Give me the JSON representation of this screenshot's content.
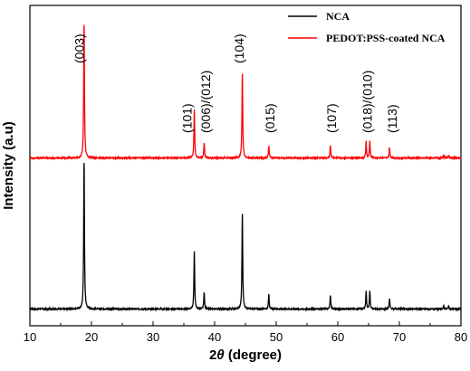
{
  "chart_data": {
    "type": "line",
    "xlabel_prefix": "2",
    "xlabel_symbol": "θ",
    "xlabel_suffix": " (degree)",
    "ylabel": "Intensity (a.u)",
    "xlim": [
      10,
      80
    ],
    "x_ticks": [
      10,
      20,
      30,
      40,
      50,
      60,
      70,
      80
    ],
    "y_ticks_shown": false,
    "grid": false,
    "legend_placement": "top-right",
    "series": [
      {
        "name": "NCA",
        "color": "#000000",
        "baseline": 0.03,
        "noise": 0.004,
        "peaks": [
          {
            "x": 18.8,
            "height": 1.0
          },
          {
            "x": 36.7,
            "height": 0.38
          },
          {
            "x": 38.3,
            "height": 0.11
          },
          {
            "x": 44.5,
            "height": 0.64
          },
          {
            "x": 48.8,
            "height": 0.1
          },
          {
            "x": 58.8,
            "height": 0.09
          },
          {
            "x": 64.6,
            "height": 0.12
          },
          {
            "x": 65.2,
            "height": 0.12
          },
          {
            "x": 68.4,
            "height": 0.07
          },
          {
            "x": 77.2,
            "height": 0.02
          },
          {
            "x": 78.0,
            "height": 0.02
          }
        ]
      },
      {
        "name": "PEDOT:PSS-coated NCA",
        "color": "#ff0000",
        "baseline": 1.02,
        "noise": 0.004,
        "peaks": [
          {
            "x": 18.8,
            "height": 0.91
          },
          {
            "x": 36.7,
            "height": 0.32
          },
          {
            "x": 38.3,
            "height": 0.1
          },
          {
            "x": 44.5,
            "height": 0.56
          },
          {
            "x": 48.8,
            "height": 0.08
          },
          {
            "x": 58.8,
            "height": 0.08
          },
          {
            "x": 64.6,
            "height": 0.11
          },
          {
            "x": 65.2,
            "height": 0.11
          },
          {
            "x": 68.4,
            "height": 0.07
          },
          {
            "x": 77.2,
            "height": 0.02
          },
          {
            "x": 78.0,
            "height": 0.02
          }
        ]
      }
    ],
    "annotations": [
      {
        "text": "(003)",
        "x": 18.0
      },
      {
        "text": "(101)",
        "x": 35.5
      },
      {
        "text": "(006)/(012)",
        "x": 38.5
      },
      {
        "text": "(104)",
        "x": 44.0
      },
      {
        "text": "(015)",
        "x": 49.0
      },
      {
        "text": "(107)",
        "x": 59.0
      },
      {
        "text": "(018)/(010)",
        "x": 64.8
      },
      {
        "text": "(113)",
        "x": 68.8
      }
    ]
  }
}
